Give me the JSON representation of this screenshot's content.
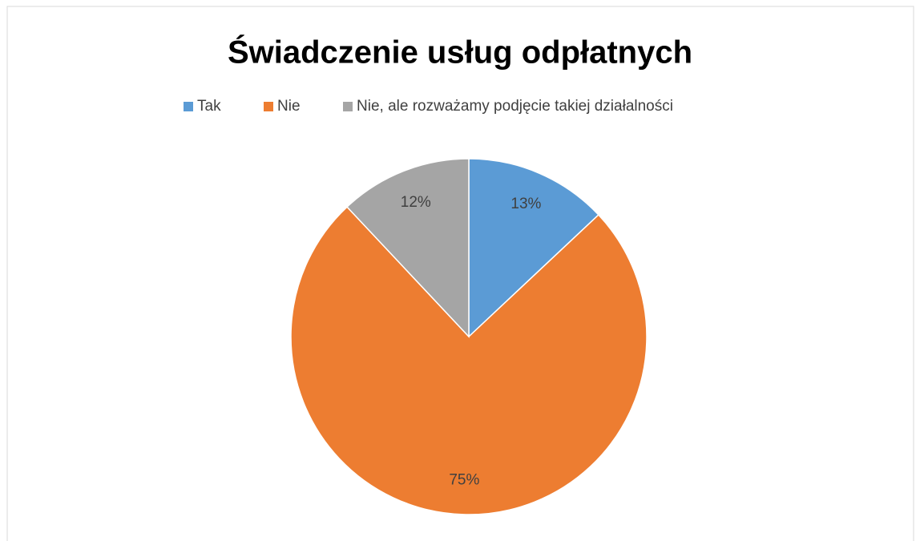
{
  "chart_data": {
    "type": "pie",
    "title": "Świadczenie usług odpłatnych",
    "categories": [
      "Tak",
      "Nie",
      "Nie, ale rozważamy podjęcie takiej działalności"
    ],
    "values": [
      13,
      75,
      12
    ],
    "value_labels": [
      "13%",
      "75%",
      "12%"
    ],
    "colors": [
      "#5b9bd5",
      "#ed7d31",
      "#a5a5a5"
    ],
    "legend": "top"
  }
}
